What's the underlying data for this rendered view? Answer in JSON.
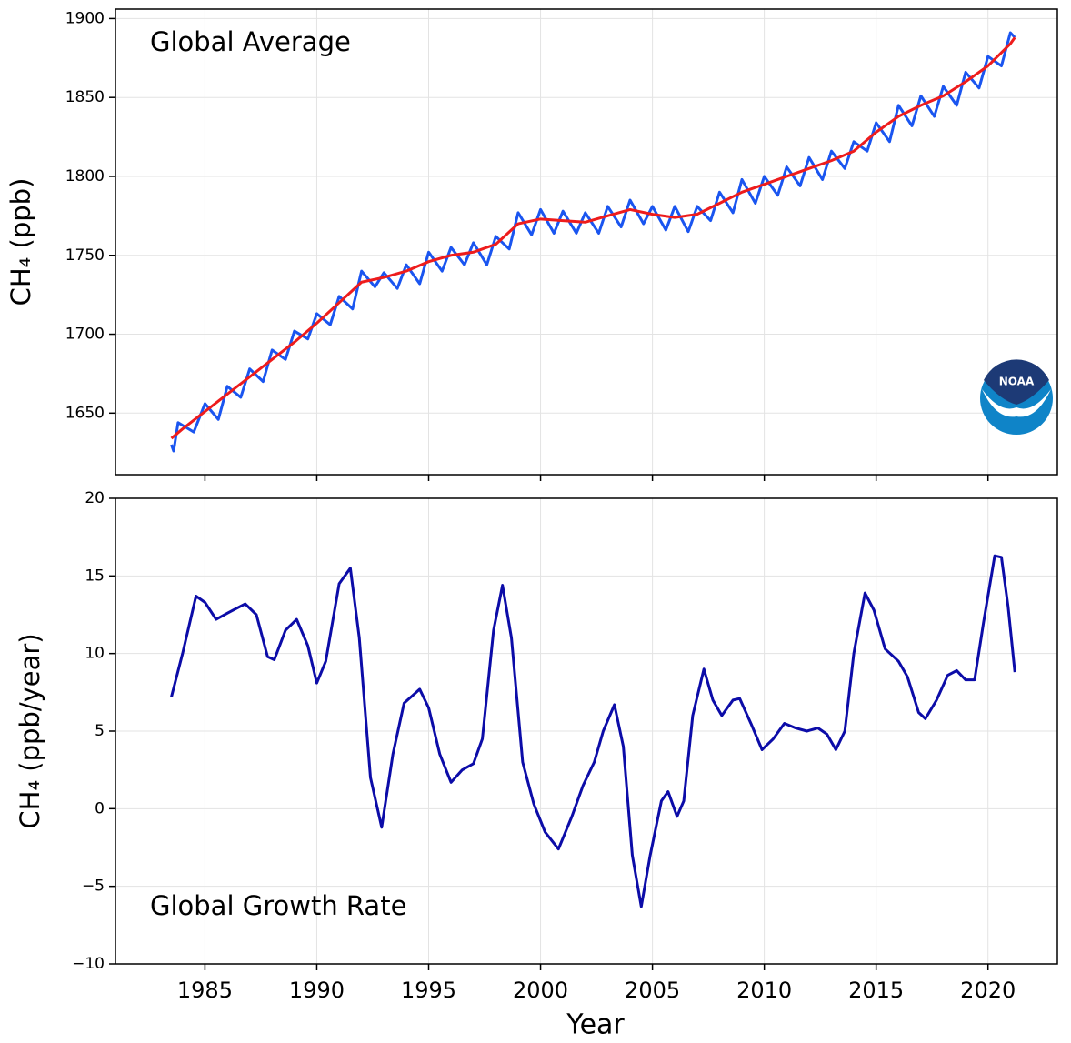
{
  "chart_data": [
    {
      "type": "line",
      "annotation": "Global Average",
      "y_label": "CH₄ (ppb)",
      "logo": "NOAA",
      "xlim": [
        1981,
        2023.1
      ],
      "ylim": [
        1611,
        1906
      ],
      "yticks": [
        1650,
        1700,
        1750,
        1800,
        1850,
        1900
      ],
      "grid": true,
      "series": [
        {
          "color": "#1a55f0",
          "x": [
            1983.5,
            1983.6,
            1983.8,
            1984.5,
            1985.0,
            1985.6,
            1986.0,
            1986.6,
            1987.0,
            1987.6,
            1988.0,
            1988.6,
            1989.0,
            1989.6,
            1990.0,
            1990.6,
            1991.0,
            1991.6,
            1992.0,
            1992.6,
            1993.0,
            1993.6,
            1994.0,
            1994.6,
            1995.0,
            1995.6,
            1996.0,
            1996.6,
            1997.0,
            1997.6,
            1998.0,
            1998.6,
            1999.0,
            1999.6,
            2000.0,
            2000.6,
            2001.0,
            2001.6,
            2002.0,
            2002.6,
            2003.0,
            2003.6,
            2004.0,
            2004.6,
            2005.0,
            2005.6,
            2006.0,
            2006.6,
            2007.0,
            2007.6,
            2008.0,
            2008.6,
            2009.0,
            2009.6,
            2010.0,
            2010.6,
            2011.0,
            2011.6,
            2012.0,
            2012.6,
            2013.0,
            2013.6,
            2014.0,
            2014.6,
            2015.0,
            2015.6,
            2016.0,
            2016.6,
            2017.0,
            2017.6,
            2018.0,
            2018.6,
            2019.0,
            2019.6,
            2020.0,
            2020.6,
            2021.0,
            2021.2
          ],
          "values": [
            1630,
            1626,
            1644,
            1638,
            1656,
            1646,
            1667,
            1660,
            1678,
            1670,
            1690,
            1684,
            1702,
            1697,
            1713,
            1706,
            1724,
            1716,
            1740,
            1730,
            1739,
            1729,
            1744,
            1732,
            1752,
            1740,
            1755,
            1744,
            1758,
            1744,
            1762,
            1754,
            1777,
            1763,
            1779,
            1764,
            1778,
            1764,
            1777,
            1764,
            1781,
            1768,
            1785,
            1770,
            1781,
            1766,
            1781,
            1765,
            1781,
            1772,
            1790,
            1777,
            1798,
            1783,
            1800,
            1788,
            1806,
            1794,
            1812,
            1798,
            1816,
            1805,
            1822,
            1816,
            1834,
            1822,
            1845,
            1832,
            1851,
            1838,
            1857,
            1845,
            1866,
            1856,
            1876,
            1870,
            1891,
            1888
          ]
        },
        {
          "color": "#ee1c1c",
          "x": [
            1983.5,
            1984,
            1985,
            1986,
            1987,
            1988,
            1989,
            1990,
            1991,
            1992,
            1993,
            1994,
            1995,
            1996,
            1997,
            1998,
            1999,
            2000,
            2001,
            2002,
            2003,
            2004,
            2005,
            2006,
            2007,
            2008,
            2009,
            2010,
            2011,
            2012,
            2013,
            2014,
            2015,
            2016,
            2017,
            2018,
            2019,
            2020,
            2021,
            2021.2
          ],
          "values": [
            1634,
            1640,
            1651,
            1662,
            1673,
            1684,
            1695,
            1707,
            1720,
            1733,
            1736,
            1740,
            1746,
            1750,
            1752,
            1757,
            1770,
            1773,
            1772,
            1771,
            1775,
            1779,
            1776,
            1774,
            1776,
            1783,
            1790,
            1795,
            1800,
            1805,
            1810,
            1816,
            1828,
            1838,
            1845,
            1851,
            1860,
            1870,
            1884,
            1888
          ]
        }
      ]
    },
    {
      "type": "line",
      "annotation": "Global Growth Rate",
      "y_label": "CH₄ (ppb/year)",
      "x_label": "Year",
      "xlim": [
        1981,
        2023.1
      ],
      "xticks": [
        1985,
        1990,
        1995,
        2000,
        2005,
        2010,
        2015,
        2020
      ],
      "ylim": [
        -10,
        20
      ],
      "yticks": [
        {
          "value": -10,
          "label": "−10"
        },
        {
          "value": -5,
          "label": "−5"
        },
        0,
        5,
        10,
        15,
        20
      ],
      "grid": true,
      "series": [
        {
          "color": "#0c0ca8",
          "x": [
            1983.5,
            1984.0,
            1984.6,
            1985.0,
            1985.5,
            1986.0,
            1986.8,
            1987.3,
            1987.8,
            1988.1,
            1988.6,
            1989.1,
            1989.6,
            1990.0,
            1990.4,
            1991.0,
            1991.5,
            1991.9,
            1992.4,
            1992.9,
            1993.4,
            1993.9,
            1994.6,
            1995.0,
            1995.5,
            1996.0,
            1996.5,
            1997.0,
            1997.4,
            1997.9,
            1998.3,
            1998.7,
            1999.2,
            1999.7,
            2000.2,
            2000.8,
            2001.4,
            2001.9,
            2002.4,
            2002.8,
            2003.3,
            2003.7,
            2004.1,
            2004.5,
            2004.9,
            2005.4,
            2005.7,
            2006.1,
            2006.4,
            2006.8,
            2007.3,
            2007.7,
            2008.1,
            2008.6,
            2008.9,
            2009.4,
            2009.9,
            2010.4,
            2010.9,
            2011.4,
            2011.9,
            2012.4,
            2012.8,
            2013.2,
            2013.6,
            2014.0,
            2014.5,
            2014.9,
            2015.4,
            2016.0,
            2016.4,
            2016.9,
            2017.2,
            2017.7,
            2018.2,
            2018.6,
            2019.0,
            2019.4,
            2019.8,
            2020.3,
            2020.6,
            2020.9,
            2021.2
          ],
          "values": [
            7.2,
            10,
            13.7,
            13.3,
            12.2,
            12.6,
            13.2,
            12.5,
            9.8,
            9.6,
            11.5,
            12.2,
            10.5,
            8.1,
            9.5,
            14.5,
            15.5,
            11,
            2,
            -1.2,
            3.5,
            6.8,
            7.7,
            6.5,
            3.5,
            1.7,
            2.5,
            2.9,
            4.5,
            11.5,
            14.4,
            11,
            3,
            0.3,
            -1.5,
            -2.6,
            -0.5,
            1.5,
            3,
            5,
            6.7,
            4,
            -3,
            -6.3,
            -3,
            0.5,
            1.1,
            -0.5,
            0.5,
            6,
            9,
            7,
            6,
            7,
            7.1,
            5.5,
            3.8,
            4.5,
            5.5,
            5.2,
            5,
            5.2,
            4.8,
            3.8,
            5,
            10,
            13.9,
            12.8,
            10.3,
            9.5,
            8.5,
            6.2,
            5.8,
            7,
            8.6,
            8.9,
            8.3,
            8.3,
            12,
            16.3,
            16.2,
            13,
            8.8
          ]
        }
      ]
    }
  ]
}
